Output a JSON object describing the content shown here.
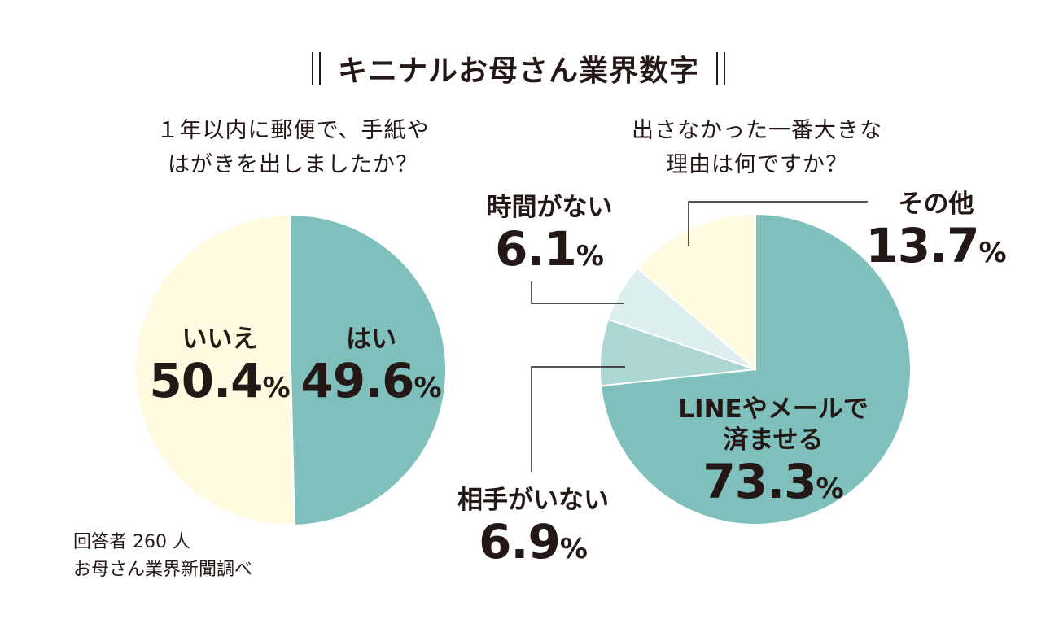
{
  "header": {
    "title": "キニナルお母さん業界数字"
  },
  "colors": {
    "teal": "#7fc0bd",
    "cream": "#fffbe0",
    "light_teal": "#acd6d4",
    "pale_teal": "#dcefee",
    "text": "#231815",
    "stroke": "#ffffff"
  },
  "chart_data": [
    {
      "type": "pie",
      "title_lines": [
        "１年以内に郵便で、手紙や",
        "はがきを出しましたか？"
      ],
      "start": "12 o'clock",
      "direction": "clockwise",
      "slices": [
        {
          "label": "はい",
          "value": 49.6,
          "unit": "%",
          "color": "#7fc0bd"
        },
        {
          "label": "いいえ",
          "value": 50.4,
          "unit": "%",
          "color": "#fffbe0"
        }
      ]
    },
    {
      "type": "pie",
      "title_lines": [
        "出さなかった一番大きな",
        "理由は何ですか？"
      ],
      "start": "12 o'clock",
      "direction": "clockwise",
      "slices": [
        {
          "label_lines": [
            "LINEやメールで",
            "済ませる"
          ],
          "value": 73.3,
          "unit": "%",
          "color": "#7fc0bd"
        },
        {
          "label_lines": [
            "相手がいない"
          ],
          "value": 6.9,
          "unit": "%",
          "color": "#acd6d4"
        },
        {
          "label_lines": [
            "時間がない"
          ],
          "value": 6.1,
          "unit": "%",
          "color": "#dcefee"
        },
        {
          "label_lines": [
            "その他"
          ],
          "value": 13.7,
          "unit": "%",
          "color": "#fffbe0"
        }
      ]
    }
  ],
  "labels": {
    "yes": {
      "name": "はい",
      "value": "49.6",
      "unit": "%"
    },
    "no": {
      "name": "いいえ",
      "value": "50.4",
      "unit": "%"
    },
    "line_mail": {
      "name_line1": "LINEやメールで",
      "name_line2": "済ませる",
      "value": "73.3",
      "unit": "%"
    },
    "no_partner": {
      "name": "相手がいない",
      "value": "6.9",
      "unit": "%"
    },
    "no_time": {
      "name": "時間がない",
      "value": "6.1",
      "unit": "%"
    },
    "other": {
      "name": "その他",
      "value": "13.7",
      "unit": "%"
    }
  },
  "footer": {
    "respondents": "回答者 260 人",
    "source": "お母さん業界新聞調べ"
  }
}
